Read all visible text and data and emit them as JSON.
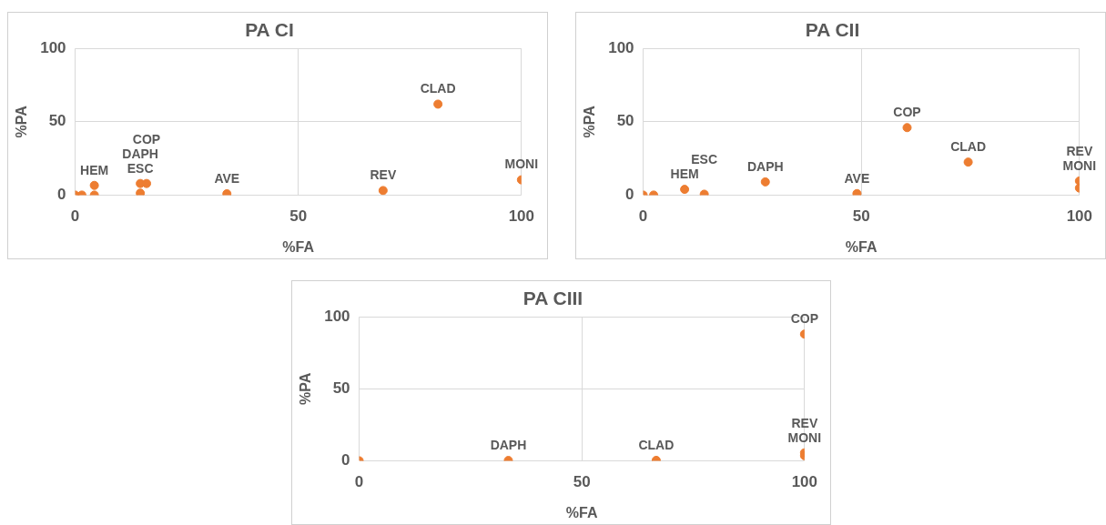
{
  "chart_data": [
    {
      "type": "scatter",
      "title": "PA CI",
      "xlabel": "%FA",
      "ylabel": "%PA",
      "xlim": [
        0,
        100
      ],
      "xticks": [
        0,
        50,
        100
      ],
      "ylim": [
        0,
        100
      ],
      "yticks": [
        0,
        50,
        100
      ],
      "grid": true,
      "legend": false,
      "marker": "circle",
      "series": [
        {
          "color": "#ed7d31",
          "x": [
            0,
            1.5,
            4.3,
            4.3,
            14.6,
            14.6,
            16,
            34,
            69,
            81.3,
            100
          ],
          "values": [
            0,
            0,
            0,
            6.6,
            1.3,
            7.9,
            7.9,
            0.9,
            3.1,
            62,
            10.4
          ]
        }
      ],
      "annotations": [
        {
          "text": "HEM",
          "x": 4.3,
          "y": 6.6
        },
        {
          "text": "ESC",
          "x": 14.6,
          "y": 7.9
        },
        {
          "text": "DAPH",
          "x": 14.6,
          "y": 11.5
        },
        {
          "text": "COP",
          "x": 16,
          "y": 11.5
        },
        {
          "text": "AVE",
          "x": 34,
          "y": 0.9
        },
        {
          "text": "REV",
          "x": 69,
          "y": 3.1
        },
        {
          "text": "CLAD",
          "x": 81.3,
          "y": 62
        },
        {
          "text": "MONI",
          "x": 100,
          "y": 10.4
        }
      ]
    },
    {
      "type": "scatter",
      "title": "PA CII",
      "xlabel": "%FA",
      "ylabel": "%PA",
      "xlim": [
        0,
        100
      ],
      "xticks": [
        0,
        50,
        100
      ],
      "ylim": [
        0,
        100
      ],
      "yticks": [
        0,
        50,
        100
      ],
      "grid": true,
      "legend": false,
      "marker": "circle",
      "series": [
        {
          "color": "#ed7d31",
          "x": [
            0,
            2.4,
            9.5,
            14,
            28,
            49,
            60.5,
            74.5,
            100,
            100
          ],
          "values": [
            0,
            0,
            3.9,
            0.6,
            9,
            1,
            46,
            22.5,
            9.6,
            4.8
          ]
        }
      ],
      "annotations": [
        {
          "text": "HEM",
          "x": 9.5,
          "y": 3.9
        },
        {
          "text": "ESC",
          "x": 14,
          "y": 0.6
        },
        {
          "text": "DAPH",
          "x": 28,
          "y": 9
        },
        {
          "text": "AVE",
          "x": 49,
          "y": 1
        },
        {
          "text": "COP",
          "x": 60.5,
          "y": 46
        },
        {
          "text": "CLAD",
          "x": 74.5,
          "y": 22.5
        },
        {
          "text": "MONI",
          "x": 100,
          "y": 9.6
        },
        {
          "text": "REV",
          "x": 100,
          "y": 4.8
        }
      ]
    },
    {
      "type": "scatter",
      "title": "PA CIII",
      "xlabel": "%FA",
      "ylabel": "%PA",
      "xlim": [
        0,
        100
      ],
      "xticks": [
        0,
        50,
        100
      ],
      "ylim": [
        0,
        100
      ],
      "yticks": [
        0,
        50,
        100
      ],
      "grid": true,
      "legend": false,
      "marker": "circle",
      "series": [
        {
          "color": "#ed7d31",
          "x": [
            0,
            33.5,
            66.7,
            100,
            100,
            100
          ],
          "values": [
            0,
            0.2,
            0.3,
            88,
            5.5,
            3.5
          ]
        }
      ],
      "annotations": [
        {
          "text": "DAPH",
          "x": 33.5,
          "y": 0.2
        },
        {
          "text": "CLAD",
          "x": 66.7,
          "y": 0.3
        },
        {
          "text": "COP",
          "x": 100,
          "y": 88
        },
        {
          "text": "MONI",
          "x": 100,
          "y": 5.5
        },
        {
          "text": "REV",
          "x": 100,
          "y": 3.5
        }
      ]
    }
  ]
}
